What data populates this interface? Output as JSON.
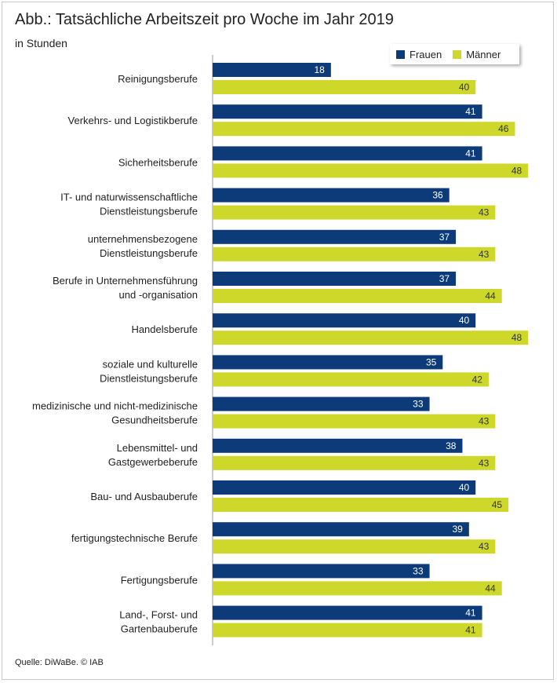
{
  "title": "Abb.: Tatsächliche Arbeitszeit pro Woche im Jahr 2019",
  "subtitle": "in Stunden",
  "source": "Quelle: DiWaBe. © IAB",
  "colors": {
    "frauen": "#0d3b7a",
    "maenner": "#cdd82a"
  },
  "chart_data": {
    "type": "bar",
    "orientation": "horizontal",
    "title": "Abb.: Tatsächliche Arbeitszeit pro Woche im Jahr 2019",
    "subtitle": "in Stunden",
    "xlim": [
      0,
      50
    ],
    "legend_position": "top-right",
    "categories": [
      [
        "Reinigungsberufe"
      ],
      [
        "Verkehrs- und Logistikberufe"
      ],
      [
        "Sicherheitsberufe"
      ],
      [
        "IT- und naturwissenschaftliche",
        "Dienstleistungsberufe"
      ],
      [
        "unternehmensbezogene",
        "Dienstleistungsberufe"
      ],
      [
        "Berufe in Unternehmensführung",
        "und -organisation"
      ],
      [
        "Handelsberufe"
      ],
      [
        "soziale und kulturelle",
        "Dienstleistungsberufe"
      ],
      [
        "medizinische und nicht-medizinische",
        "Gesundheitsberufe"
      ],
      [
        "Lebensmittel- und",
        "Gastgewerbeberufe"
      ],
      [
        "Bau- und Ausbauberufe"
      ],
      [
        "fertigungstechnische Berufe"
      ],
      [
        "Fertigungsberufe"
      ],
      [
        "Land-, Forst- und",
        "Gartenbauberufe"
      ]
    ],
    "series": [
      {
        "name": "Frauen",
        "values": [
          18,
          41,
          41,
          36,
          37,
          37,
          40,
          35,
          33,
          38,
          40,
          39,
          33,
          41
        ]
      },
      {
        "name": "Männer",
        "values": [
          40,
          46,
          48,
          43,
          43,
          44,
          48,
          42,
          43,
          43,
          45,
          43,
          44,
          41
        ]
      }
    ]
  }
}
